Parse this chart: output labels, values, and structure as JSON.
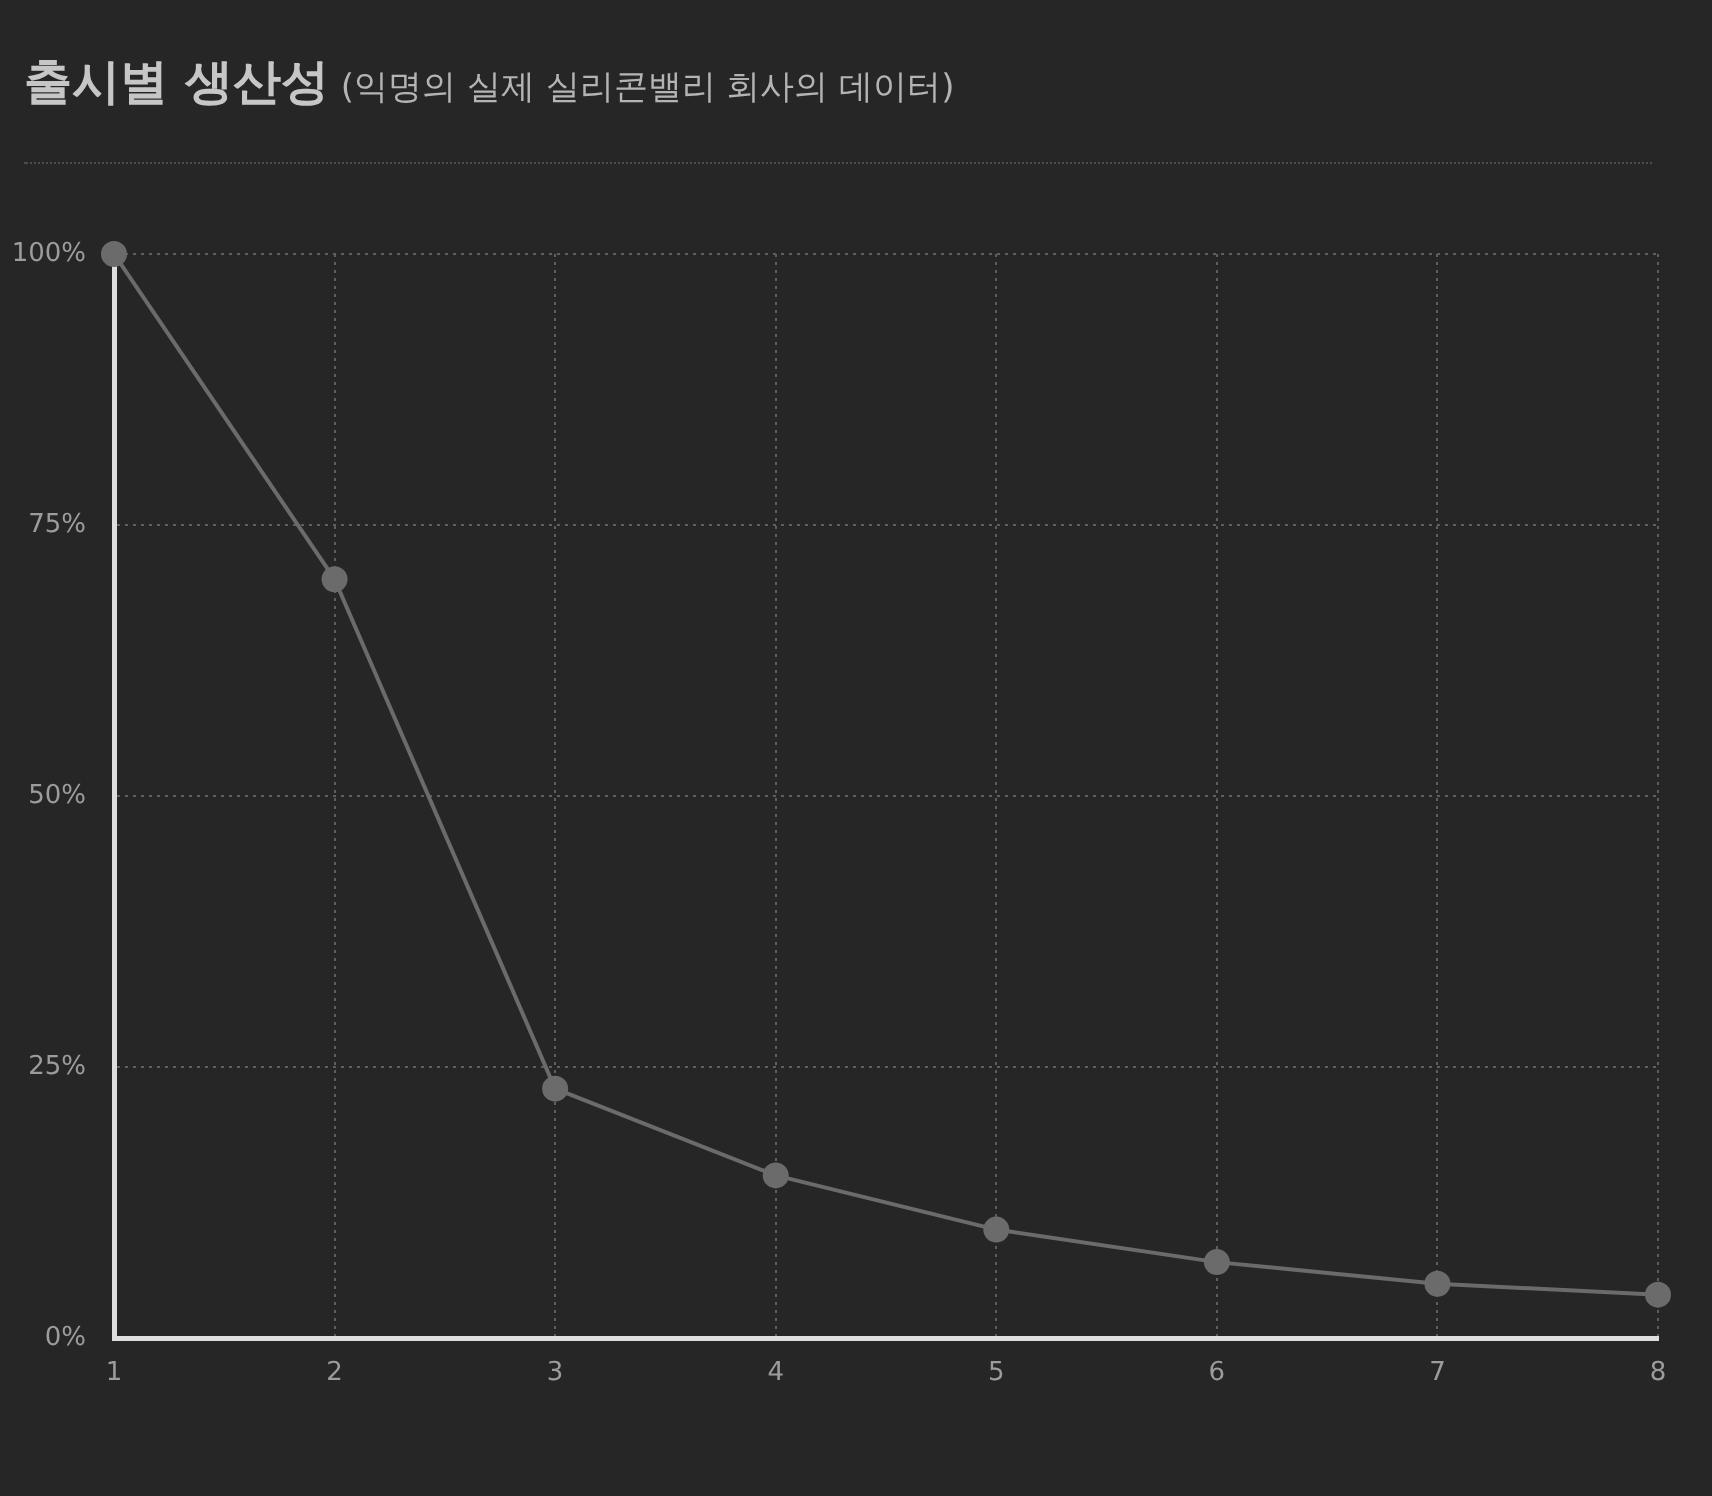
{
  "chart_data": {
    "type": "line",
    "title": "출시별 생산성",
    "subtitle": "(익명의 실제 실리콘밸리 회사의 데이터)",
    "x": [
      1,
      2,
      3,
      4,
      5,
      6,
      7,
      8
    ],
    "values": [
      100,
      70,
      23,
      15,
      10,
      7,
      5,
      4
    ],
    "color": "#6b6b6b",
    "xlim": [
      1,
      8
    ],
    "xticks": [
      1,
      2,
      3,
      4,
      5,
      6,
      7,
      8
    ],
    "ylim": [
      0,
      100
    ],
    "yticks": [
      {
        "value": 0,
        "label": "0%"
      },
      {
        "value": 25,
        "label": "25%"
      },
      {
        "value": 50,
        "label": "50%"
      },
      {
        "value": 75,
        "label": "75%"
      },
      {
        "value": 100,
        "label": "100%"
      }
    ],
    "grid": true,
    "marker": "circle",
    "line_style": "solid"
  }
}
